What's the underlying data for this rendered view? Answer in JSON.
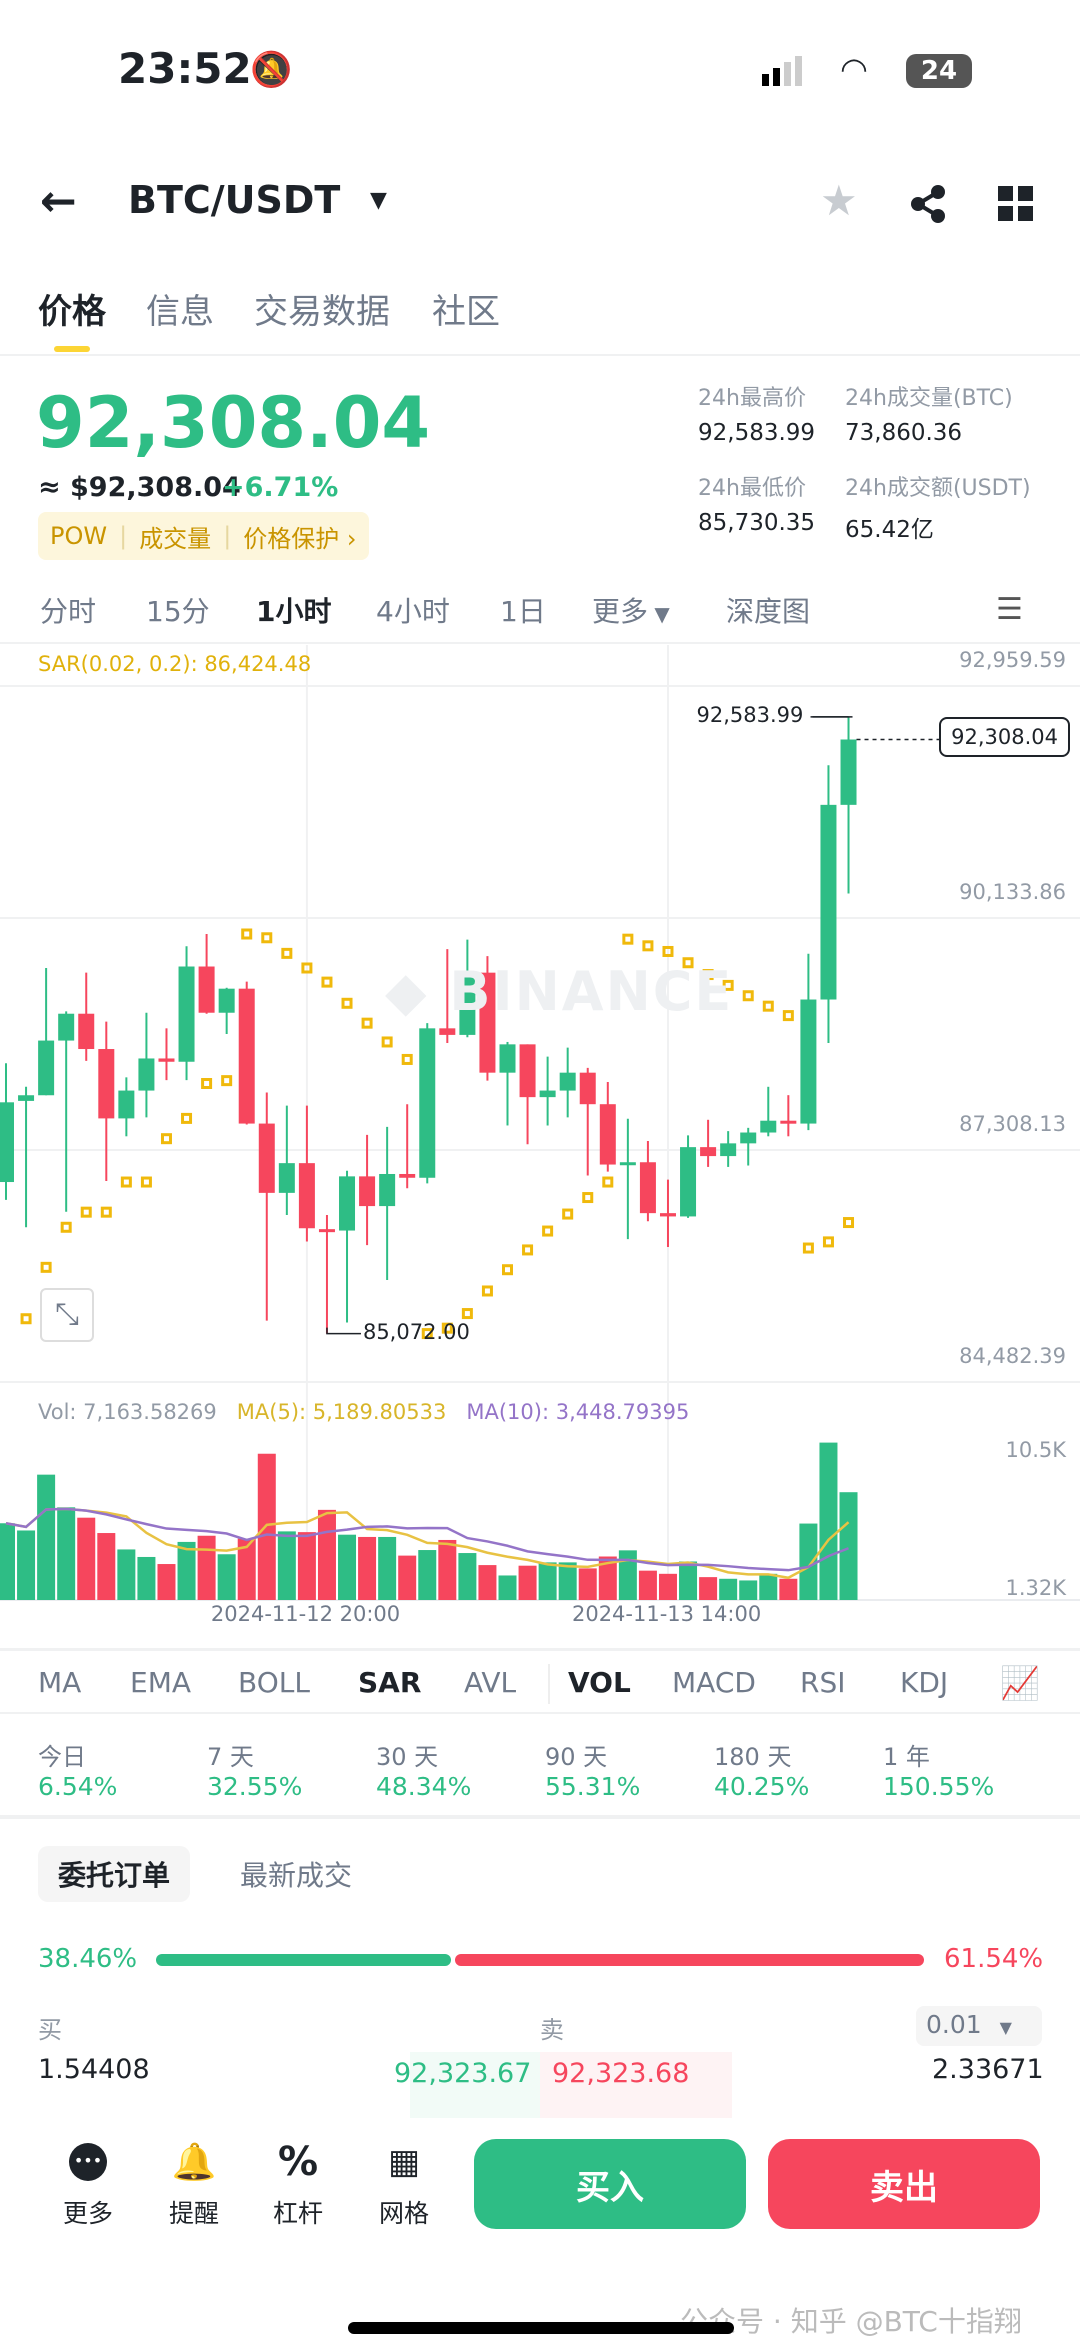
{
  "status": {
    "time": "23:52",
    "battery": "24"
  },
  "header": {
    "pair": "BTC/USDT",
    "icons": [
      "back-arrow-icon",
      "star-icon",
      "share-icon",
      "grid-icon"
    ]
  },
  "tabs": [
    "价格",
    "信息",
    "交易数据",
    "社区"
  ],
  "price": {
    "last": "92,308.04",
    "usd": "≈ $92,308.04",
    "change": "+6.71%",
    "tags": [
      "POW",
      "成交量",
      "价格保护 ›"
    ]
  },
  "stats": {
    "high_label": "24h最高价",
    "high": "92,583.99",
    "vol_btc_label": "24h成交量(BTC)",
    "vol_btc": "73,860.36",
    "low_label": "24h最低价",
    "low": "85,730.35",
    "vol_usdt_label": "24h成交额(USDT)",
    "vol_usdt": "65.42亿"
  },
  "intervals": [
    "分时",
    "15分",
    "1小时",
    "4小时",
    "1日",
    "更多",
    "深度图"
  ],
  "active_interval": "1小时",
  "chart_legend": {
    "sar": "SAR(0.02, 0.2): 86,424.48",
    "vol": "Vol: 7,163.58269",
    "ma5": "MA(5): 5,189.80533",
    "ma10": "MA(10): 3,448.79395"
  },
  "colors": {
    "up": "#2ebd85",
    "down": "#f6465d",
    "sar": "#f0b90b",
    "ma5": "#e8c243",
    "ma10": "#9474c8",
    "accent": "#fcd535"
  },
  "chart_data": {
    "type": "candlestick",
    "price_ticks": [
      "92,959.59",
      "90,133.86",
      "87,308.13",
      "84,482.39"
    ],
    "price_tick_values": [
      92959.59,
      90133.86,
      87308.13,
      84482.39
    ],
    "high_marker": "92,583.99",
    "low_marker": "85,072.00",
    "last_marker": "92,308.04",
    "time_labels": [
      "2024-11-12 20:00",
      "2024-11-13 14:00"
    ],
    "time_label_index": [
      15,
      33
    ],
    "vol_ticks": [
      "10.5K",
      "1.32K"
    ],
    "ohlc": [
      [
        86918,
        88365,
        86700,
        87889
      ],
      [
        87906,
        88078,
        86367,
        87975
      ],
      [
        87975,
        89525,
        87975,
        88641
      ],
      [
        88641,
        88997,
        86556,
        88968
      ],
      [
        88968,
        89468,
        88394,
        88538
      ],
      [
        88538,
        88871,
        86930,
        87693
      ],
      [
        87693,
        88193,
        87475,
        88032
      ],
      [
        88032,
        88980,
        87705,
        88423
      ],
      [
        88423,
        88790,
        88159,
        88383
      ],
      [
        88383,
        89790,
        88159,
        89543
      ],
      [
        89543,
        89939,
        88968,
        88980
      ],
      [
        88980,
        89284,
        88721,
        89273
      ],
      [
        89273,
        89359,
        87619,
        87630
      ],
      [
        87630,
        88009,
        85230,
        86786
      ],
      [
        86786,
        87848,
        86516,
        87148
      ],
      [
        87148,
        87848,
        86194,
        86355
      ],
      [
        86344,
        86516,
        85072,
        86321
      ],
      [
        86327,
        87056,
        85207,
        86987
      ],
      [
        86987,
        87492,
        86149,
        86625
      ],
      [
        86625,
        87590,
        85724,
        87016
      ],
      [
        87016,
        87866,
        86843,
        86970
      ],
      [
        86970,
        88853,
        86901,
        88790
      ],
      [
        88790,
        89755,
        88612,
        88710
      ],
      [
        88710,
        89870,
        88681,
        89468
      ],
      [
        89468,
        89669,
        88153,
        88250
      ],
      [
        88250,
        88624,
        87607,
        88595
      ],
      [
        88595,
        88595,
        87378,
        87952
      ],
      [
        87952,
        88446,
        87607,
        88032
      ],
      [
        88032,
        88555,
        87705,
        88250
      ],
      [
        88250,
        88308,
        86998,
        87866
      ],
      [
        87866,
        88136,
        87044,
        87131
      ],
      [
        87136,
        87688,
        86223,
        87159
      ],
      [
        87159,
        87418,
        86441,
        86539
      ],
      [
        86539,
        86947,
        86126,
        86499
      ],
      [
        86499,
        87487,
        86482,
        87343
      ],
      [
        87343,
        87676,
        87102,
        87234
      ],
      [
        87234,
        87538,
        87102,
        87389
      ],
      [
        87389,
        87578,
        87119,
        87521
      ],
      [
        87521,
        88078,
        87475,
        87665
      ],
      [
        87665,
        87976,
        87475,
        87630
      ],
      [
        87630,
        89698,
        87550,
        89141
      ],
      [
        89141,
        91995,
        88612,
        91512
      ],
      [
        91512,
        92583.99,
        90433,
        92308.04
      ]
    ],
    "sar": [
      null,
      85253,
      85879,
      86367,
      86551,
      86551,
      86918,
      86918,
      87446,
      87693,
      88118,
      88153,
      89939,
      89893,
      89703,
      89525,
      89353,
      89095,
      88853,
      88624,
      88411,
      85072,
      85138,
      85316,
      85591,
      85850,
      86091,
      86321,
      86528,
      86729,
      86918,
      89876,
      89795,
      89726,
      89589,
      89445,
      89313,
      89187,
      89060,
      88945,
      86114,
      86189,
      86424.48
    ],
    "volume": [
      5100,
      4620,
      8330,
      6160,
      5470,
      4450,
      3360,
      2860,
      2390,
      3860,
      4270,
      3040,
      4080,
      9720,
      4560,
      4510,
      5990,
      4340,
      4190,
      4190,
      2950,
      3320,
      3990,
      3120,
      2320,
      1630,
      2280,
      2500,
      2500,
      2100,
      2890,
      3300,
      1950,
      1740,
      2560,
      1520,
      1410,
      1300,
      1740,
      1410,
      5080,
      10460,
      7163.58
    ]
  },
  "indicators": [
    "MA",
    "EMA",
    "BOLL",
    "SAR",
    "AVL",
    "VOL",
    "MACD",
    "RSI",
    "KDJ"
  ],
  "active_indicators": [
    "SAR",
    "VOL"
  ],
  "performance": [
    {
      "label": "今日",
      "value": "6.54%"
    },
    {
      "label": "7 天",
      "value": "32.55%"
    },
    {
      "label": "30 天",
      "value": "48.34%"
    },
    {
      "label": "90 天",
      "value": "55.31%"
    },
    {
      "label": "180 天",
      "value": "40.25%"
    },
    {
      "label": "1 年",
      "value": "150.55%"
    }
  ],
  "orderbook": {
    "tabs": [
      "委托订单",
      "最新成交"
    ],
    "buy_pct": "38.46%",
    "sell_pct": "61.54%",
    "buy_ratio": 38.46,
    "buy_label": "买",
    "sell_label": "卖",
    "precision": "0.01",
    "row": {
      "bid_qty": "1.54408",
      "bid": "92,323.67",
      "ask": "92,323.68",
      "ask_qty": "2.33671"
    }
  },
  "bottom": {
    "tools": [
      "更多",
      "提醒",
      "杠杆",
      "网格"
    ],
    "buy": "买入",
    "sell": "卖出"
  },
  "watermark": "公众号 · 知乎 @BTC十指翔"
}
